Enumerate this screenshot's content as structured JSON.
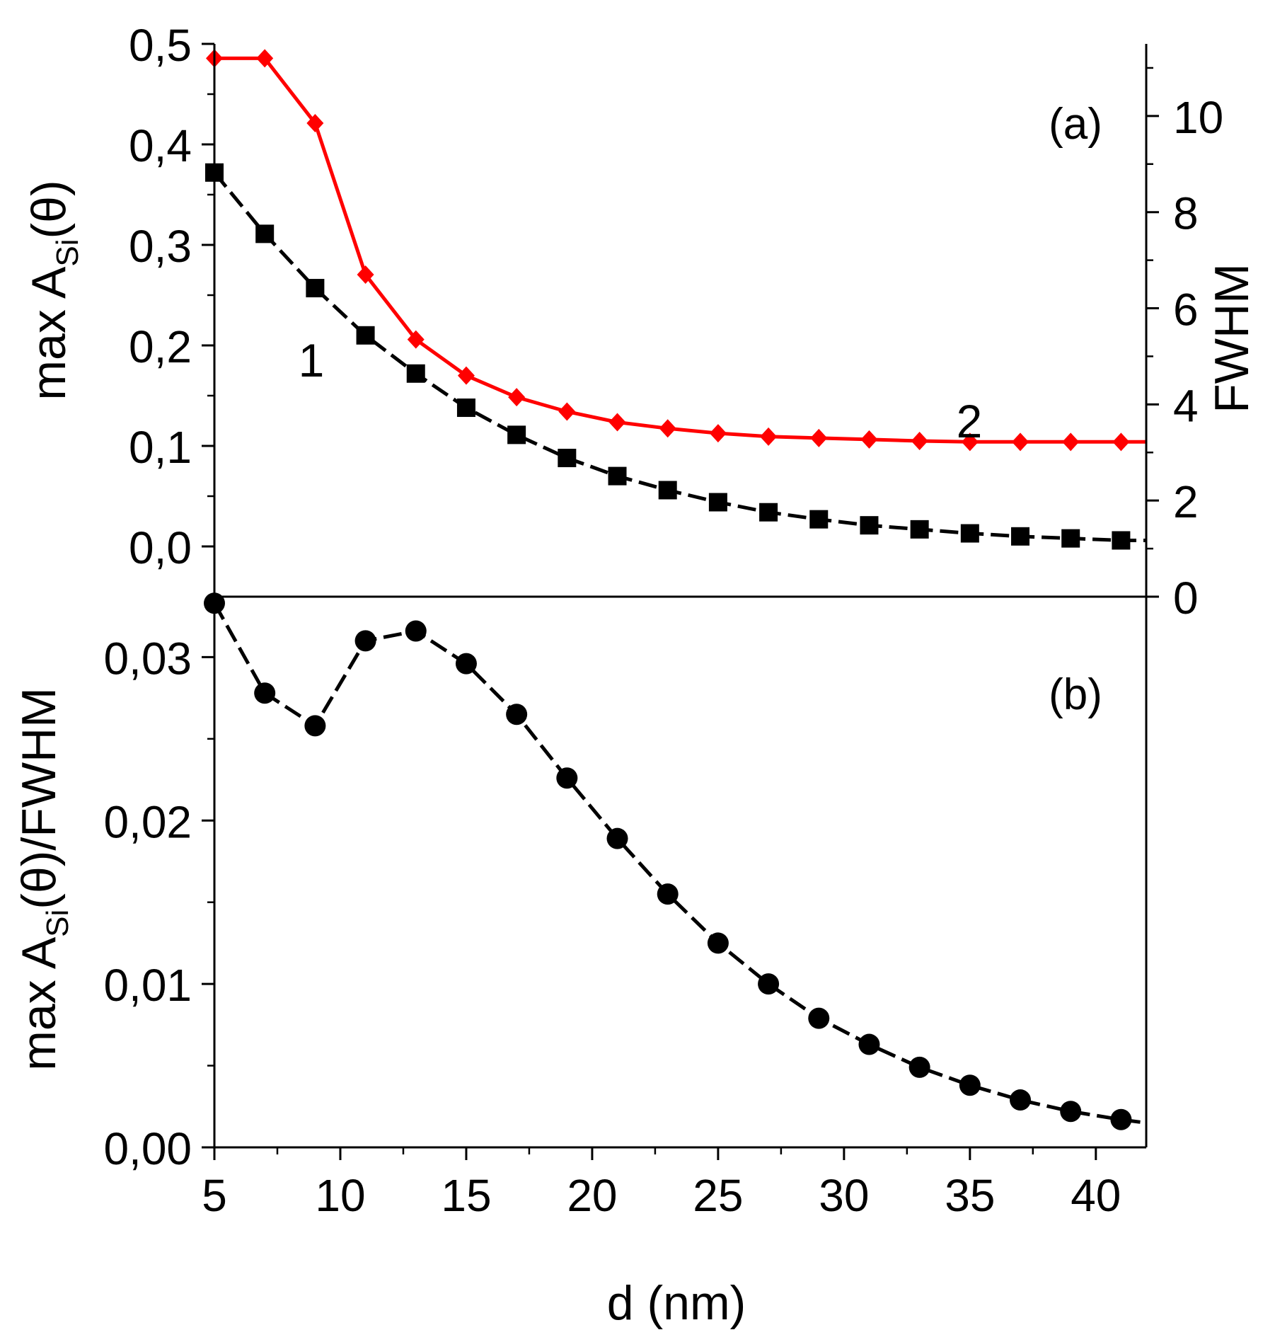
{
  "chart_data": [
    {
      "type": "line",
      "panel_label": "(a)",
      "xlabel": "d (nm)",
      "xlim": [
        5,
        42
      ],
      "x_ticks": [
        "5",
        "10",
        "15",
        "20",
        "25",
        "30",
        "35",
        "40"
      ],
      "ylabel_left": {
        "prefix": "max A",
        "subscript": "Si",
        "suffix": "(θ)"
      },
      "ylim_left": [
        -0.05,
        0.5
      ],
      "y_ticks_left": [
        "0,0",
        "0,1",
        "0,2",
        "0,3",
        "0,4",
        "0,5"
      ],
      "ylabel_right": "FWHM",
      "ylim_right": [
        0,
        11.5
      ],
      "y_ticks_right": [
        "0",
        "2",
        "4",
        "6",
        "8",
        "10"
      ],
      "grid": false,
      "series": [
        {
          "label": "1",
          "axis": "left",
          "color": "#000000",
          "marker": "square",
          "line": "dashed",
          "x": [
            5,
            7,
            9,
            11,
            13,
            15,
            17,
            19,
            21,
            23,
            25,
            27,
            29,
            31,
            33,
            35,
            37,
            39,
            41,
            42
          ],
          "y": [
            0.372,
            0.311,
            0.257,
            0.21,
            0.172,
            0.138,
            0.111,
            0.088,
            0.07,
            0.056,
            0.044,
            0.034,
            0.027,
            0.021,
            0.017,
            0.013,
            0.01,
            0.008,
            0.006,
            0.006
          ],
          "marker_count": 19
        },
        {
          "label": "2",
          "axis": "right",
          "color": "#ff0000",
          "marker": "diamond",
          "line": "solid",
          "x": [
            5,
            7,
            9,
            11,
            13,
            15,
            17,
            19,
            21,
            23,
            25,
            27,
            29,
            31,
            33,
            35,
            37,
            39,
            41,
            42
          ],
          "y": [
            11.2,
            11.2,
            9.85,
            6.7,
            5.35,
            4.6,
            4.15,
            3.85,
            3.63,
            3.5,
            3.4,
            3.33,
            3.3,
            3.27,
            3.24,
            3.22,
            3.22,
            3.22,
            3.22,
            3.22
          ],
          "marker_count": 19
        }
      ]
    },
    {
      "type": "line",
      "panel_label": "(b)",
      "xlabel": "d (nm)",
      "xlim": [
        5,
        42
      ],
      "x_ticks": [
        "5",
        "10",
        "15",
        "20",
        "25",
        "30",
        "35",
        "40"
      ],
      "ylabel": {
        "prefix": "max A",
        "subscript": "Si",
        "suffix": "(θ)/FWHM"
      },
      "ylim": [
        0,
        0.0337
      ],
      "y_ticks": [
        "0,00",
        "0,01",
        "0,02",
        "0,03"
      ],
      "grid": false,
      "series": [
        {
          "color": "#000000",
          "marker": "circle",
          "line": "dashed",
          "x": [
            5,
            7,
            9,
            11,
            13,
            15,
            17,
            19,
            21,
            23,
            25,
            27,
            29,
            31,
            33,
            35,
            37,
            39,
            41,
            42
          ],
          "y": [
            0.0333,
            0.0278,
            0.0258,
            0.031,
            0.0316,
            0.0296,
            0.0265,
            0.0226,
            0.0189,
            0.0155,
            0.0125,
            0.01,
            0.0079,
            0.0063,
            0.0049,
            0.0038,
            0.0029,
            0.0022,
            0.0017,
            0.0015
          ],
          "marker_count": 19
        }
      ]
    }
  ]
}
